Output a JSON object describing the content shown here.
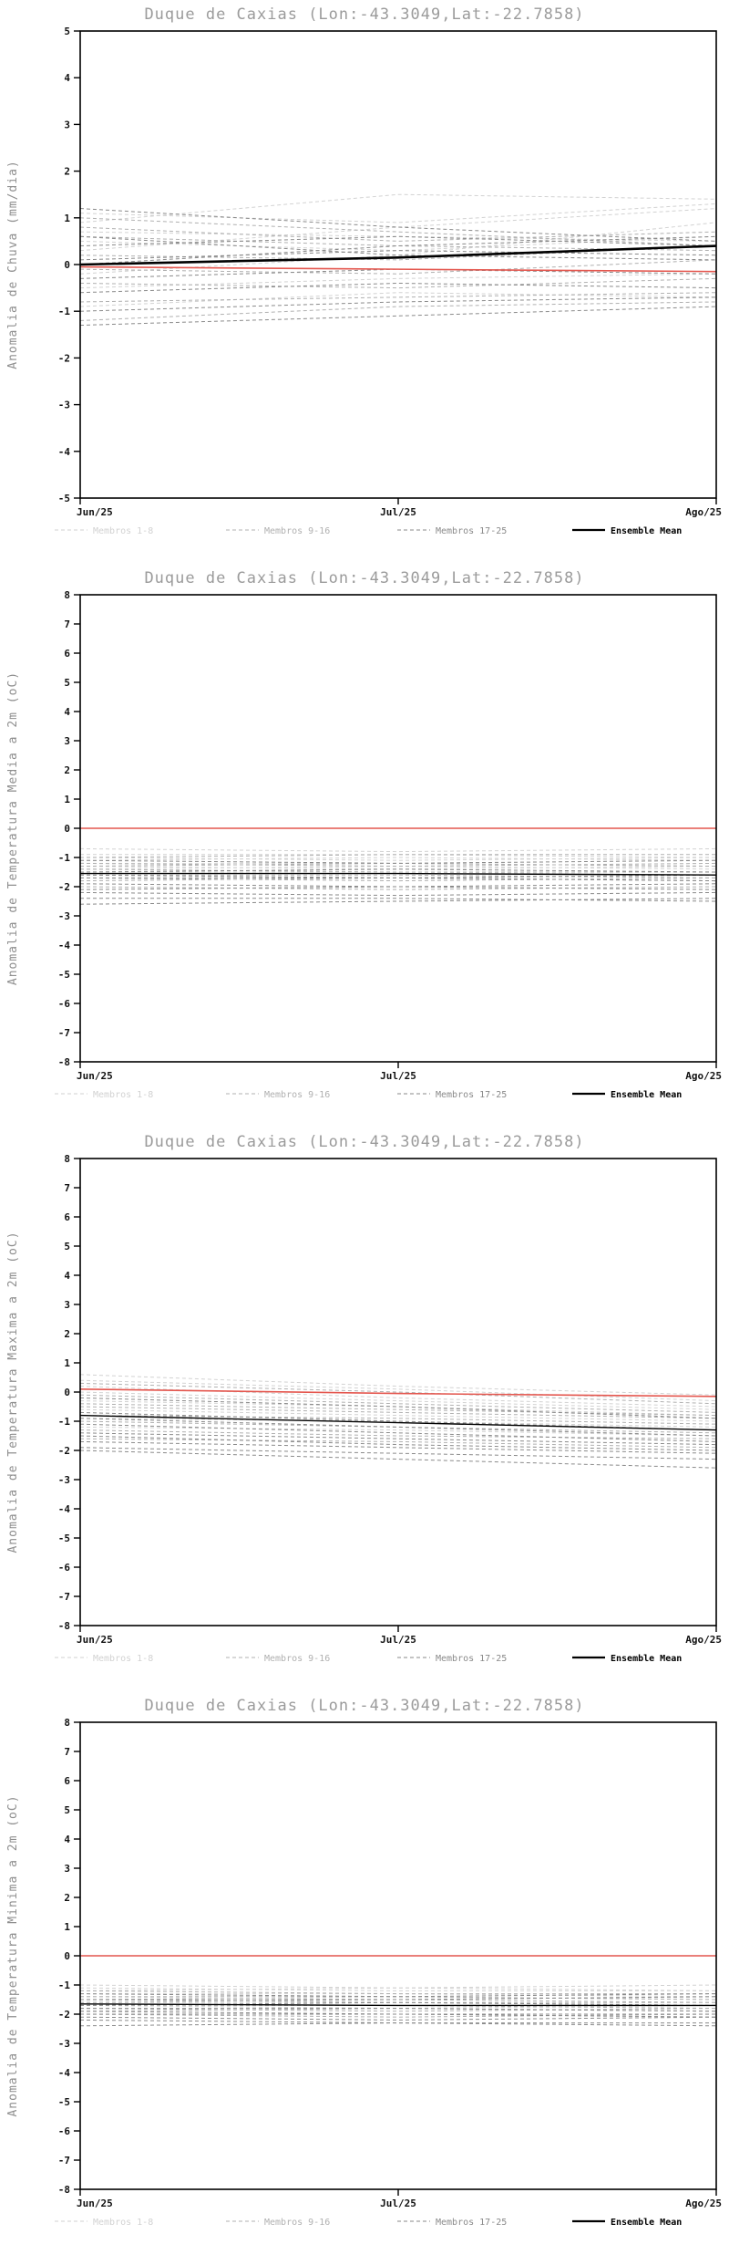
{
  "page": {
    "background": "#ffffff",
    "station_title": "Duque de Caxias (Lon:-43.3049,Lat:-22.7858)"
  },
  "chart_data": [
    {
      "type": "line",
      "title": "Duque de Caxias (Lon:-43.3049,Lat:-22.7858)",
      "ylabel": "Anomalia de Chuva (mm/dia)",
      "x_categories": [
        "Jun/25",
        "Jul/25",
        "Ago/25"
      ],
      "ylim": [
        -5,
        5
      ],
      "ytick_step": 1,
      "grid": false,
      "legend_position": "bottom",
      "mean_line_width": 2.6,
      "colors": {
        "group1": "#d2d2d2",
        "group2": "#b0b0b0",
        "group3": "#8a8a8a",
        "mean": "#000000",
        "reference": "#e4574f"
      },
      "groups": [
        {
          "name": "Membros 1-8",
          "color_key": "group1",
          "members": [
            [
              1.1,
              0.9,
              1.3
            ],
            [
              0.9,
              1.5,
              1.4
            ],
            [
              0.7,
              0.6,
              0.5
            ],
            [
              0.5,
              0.3,
              0.6
            ],
            [
              -0.2,
              0.2,
              0.9
            ],
            [
              -0.5,
              -0.3,
              -0.2
            ],
            [
              -0.9,
              -0.6,
              -0.7
            ],
            [
              0.3,
              0.8,
              1.2
            ]
          ]
        },
        {
          "name": "Membros 9-16",
          "color_key": "group2",
          "members": [
            [
              1.0,
              0.7,
              0.4
            ],
            [
              0.6,
              0.4,
              0.3
            ],
            [
              0.2,
              0.1,
              0.4
            ],
            [
              -0.1,
              -0.2,
              0.1
            ],
            [
              -0.4,
              -0.5,
              -0.3
            ],
            [
              -0.8,
              -0.7,
              -0.6
            ],
            [
              -1.2,
              -0.9,
              -0.8
            ],
            [
              0.8,
              0.5,
              0.7
            ]
          ]
        },
        {
          "name": "Membros 17-25",
          "color_key": "group3",
          "members": [
            [
              1.2,
              0.8,
              0.5
            ],
            [
              0.4,
              0.6,
              0.4
            ],
            [
              0.1,
              0.3,
              0.2
            ],
            [
              -0.3,
              -0.1,
              -0.2
            ],
            [
              -0.6,
              -0.4,
              -0.5
            ],
            [
              -1.0,
              -0.8,
              -0.7
            ],
            [
              -1.3,
              -1.1,
              -0.9
            ],
            [
              0.0,
              0.4,
              0.6
            ],
            [
              0.6,
              0.2,
              0.1
            ]
          ]
        }
      ],
      "ensemble_mean": [
        0.0,
        0.15,
        0.4
      ],
      "reference_line": [
        -0.05,
        -0.1,
        -0.15
      ],
      "legend": [
        {
          "label": "Membros 1-8",
          "color": "#d2d2d2",
          "style": "dashed"
        },
        {
          "label": "Membros 9-16",
          "color": "#b0b0b0",
          "style": "dashed"
        },
        {
          "label": "Membros 17-25",
          "color": "#8a8a8a",
          "style": "dashed"
        },
        {
          "label": "Ensemble Mean",
          "color": "#000000",
          "style": "solid"
        }
      ]
    },
    {
      "type": "line",
      "title": "Duque de Caxias (Lon:-43.3049,Lat:-22.7858)",
      "ylabel": "Anomalia de Temperatura Media a 2m (oC)",
      "x_categories": [
        "Jun/25",
        "Jul/25",
        "Ago/25"
      ],
      "ylim": [
        -8,
        8
      ],
      "ytick_step": 1,
      "grid": false,
      "legend_position": "bottom",
      "mean_line_width": 1.4,
      "colors": {
        "group1": "#d2d2d2",
        "group2": "#b0b0b0",
        "group3": "#8a8a8a",
        "mean": "#000000",
        "reference": "#e4574f"
      },
      "groups": [
        {
          "name": "Membros 1-8",
          "color_key": "group1",
          "members": [
            [
              -0.7,
              -0.8,
              -0.7
            ],
            [
              -0.9,
              -0.9,
              -1.0
            ],
            [
              -1.0,
              -1.1,
              -1.0
            ],
            [
              -1.1,
              -1.0,
              -1.1
            ],
            [
              -1.2,
              -1.2,
              -1.3
            ],
            [
              -1.3,
              -1.4,
              -1.3
            ],
            [
              -1.4,
              -1.3,
              -1.4
            ],
            [
              -1.5,
              -1.5,
              -1.6
            ]
          ]
        },
        {
          "name": "Membros 9-16",
          "color_key": "group2",
          "members": [
            [
              -1.0,
              -0.9,
              -0.9
            ],
            [
              -1.2,
              -1.3,
              -1.2
            ],
            [
              -1.4,
              -1.5,
              -1.5
            ],
            [
              -1.6,
              -1.6,
              -1.7
            ],
            [
              -1.7,
              -1.8,
              -1.7
            ],
            [
              -1.8,
              -1.7,
              -1.8
            ],
            [
              -2.0,
              -2.1,
              -2.0
            ],
            [
              -1.3,
              -1.2,
              -1.3
            ]
          ]
        },
        {
          "name": "Membros 17-25",
          "color_key": "group3",
          "members": [
            [
              -1.1,
              -1.2,
              -1.1
            ],
            [
              -1.5,
              -1.4,
              -1.5
            ],
            [
              -1.7,
              -1.7,
              -1.8
            ],
            [
              -1.9,
              -2.0,
              -1.9
            ],
            [
              -2.1,
              -2.0,
              -2.1
            ],
            [
              -2.2,
              -2.3,
              -2.2
            ],
            [
              -2.4,
              -2.4,
              -2.5
            ],
            [
              -2.6,
              -2.5,
              -2.4
            ],
            [
              -1.6,
              -1.7,
              -1.6
            ]
          ]
        }
      ],
      "ensemble_mean": [
        -1.55,
        -1.55,
        -1.6
      ],
      "reference_line": [
        0.0,
        0.0,
        0.0
      ],
      "legend": [
        {
          "label": "Membros 1-8",
          "color": "#d2d2d2",
          "style": "dashed"
        },
        {
          "label": "Membros 9-16",
          "color": "#b0b0b0",
          "style": "dashed"
        },
        {
          "label": "Membros 17-25",
          "color": "#8a8a8a",
          "style": "dashed"
        },
        {
          "label": "Ensemble Mean",
          "color": "#000000",
          "style": "solid"
        }
      ]
    },
    {
      "type": "line",
      "title": "Duque de Caxias (Lon:-43.3049,Lat:-22.7858)",
      "ylabel": "Anomalia de Temperatura Maxima a 2m (oC)",
      "x_categories": [
        "Jun/25",
        "Jul/25",
        "Ago/25"
      ],
      "ylim": [
        -8,
        8
      ],
      "ytick_step": 1,
      "grid": false,
      "legend_position": "bottom",
      "mean_line_width": 1.4,
      "colors": {
        "group1": "#d2d2d2",
        "group2": "#b0b0b0",
        "group3": "#8a8a8a",
        "mean": "#000000",
        "reference": "#e4574f"
      },
      "groups": [
        {
          "name": "Membros 1-8",
          "color_key": "group1",
          "members": [
            [
              0.6,
              0.2,
              -0.1
            ],
            [
              0.4,
              0.1,
              -0.3
            ],
            [
              0.2,
              -0.2,
              -0.5
            ],
            [
              0.0,
              -0.3,
              -0.6
            ],
            [
              -0.3,
              -0.5,
              -0.8
            ],
            [
              -0.6,
              -0.8,
              -1.0
            ],
            [
              -0.9,
              -1.0,
              -1.2
            ],
            [
              -1.2,
              -1.3,
              -1.5
            ]
          ]
        },
        {
          "name": "Membros 9-16",
          "color_key": "group2",
          "members": [
            [
              0.3,
              0.0,
              -0.4
            ],
            [
              -0.1,
              -0.4,
              -0.7
            ],
            [
              -0.5,
              -0.7,
              -0.9
            ],
            [
              -0.8,
              -0.9,
              -1.1
            ],
            [
              -1.0,
              -1.2,
              -1.4
            ],
            [
              -1.3,
              -1.5,
              -1.6
            ],
            [
              -1.6,
              -1.7,
              -1.9
            ],
            [
              -0.4,
              -0.6,
              -0.8
            ]
          ]
        },
        {
          "name": "Membros 17-25",
          "color_key": "group3",
          "members": [
            [
              -0.2,
              -0.5,
              -0.9
            ],
            [
              -0.7,
              -1.0,
              -1.3
            ],
            [
              -1.1,
              -1.4,
              -1.7
            ],
            [
              -1.4,
              -1.6,
              -1.8
            ],
            [
              -1.7,
              -1.9,
              -2.1
            ],
            [
              -1.9,
              -2.1,
              -2.3
            ],
            [
              -2.0,
              -2.3,
              -2.6
            ],
            [
              -1.5,
              -1.8,
              -2.0
            ],
            [
              -0.9,
              -1.2,
              -1.5
            ]
          ]
        }
      ],
      "ensemble_mean": [
        -0.8,
        -1.05,
        -1.3
      ],
      "reference_line": [
        0.1,
        -0.05,
        -0.15
      ],
      "legend": [
        {
          "label": "Membros 1-8",
          "color": "#d2d2d2",
          "style": "dashed"
        },
        {
          "label": "Membros 9-16",
          "color": "#b0b0b0",
          "style": "dashed"
        },
        {
          "label": "Membros 17-25",
          "color": "#8a8a8a",
          "style": "dashed"
        },
        {
          "label": "Ensemble Mean",
          "color": "#000000",
          "style": "solid"
        }
      ]
    },
    {
      "type": "line",
      "title": "Duque de Caxias (Lon:-43.3049,Lat:-22.7858)",
      "ylabel": "Anomalia de Temperatura Minima a 2m (oC)",
      "x_categories": [
        "Jun/25",
        "Jul/25",
        "Ago/25"
      ],
      "ylim": [
        -8,
        8
      ],
      "ytick_step": 1,
      "grid": false,
      "legend_position": "bottom",
      "mean_line_width": 1.4,
      "colors": {
        "group1": "#d2d2d2",
        "group2": "#b0b0b0",
        "group3": "#8a8a8a",
        "mean": "#000000",
        "reference": "#e4574f"
      },
      "groups": [
        {
          "name": "Membros 1-8",
          "color_key": "group1",
          "members": [
            [
              -1.0,
              -1.1,
              -1.0
            ],
            [
              -1.1,
              -1.2,
              -1.2
            ],
            [
              -1.2,
              -1.1,
              -1.2
            ],
            [
              -1.3,
              -1.3,
              -1.4
            ],
            [
              -1.4,
              -1.5,
              -1.4
            ],
            [
              -1.5,
              -1.4,
              -1.5
            ],
            [
              -1.6,
              -1.6,
              -1.7
            ],
            [
              -1.7,
              -1.8,
              -1.7
            ]
          ]
        },
        {
          "name": "Membros 9-16",
          "color_key": "group2",
          "members": [
            [
              -1.2,
              -1.3,
              -1.3
            ],
            [
              -1.4,
              -1.4,
              -1.5
            ],
            [
              -1.5,
              -1.6,
              -1.6
            ],
            [
              -1.7,
              -1.7,
              -1.8
            ],
            [
              -1.8,
              -1.9,
              -1.8
            ],
            [
              -1.9,
              -1.8,
              -1.9
            ],
            [
              -2.0,
              -2.1,
              -2.0
            ],
            [
              -1.6,
              -1.5,
              -1.6
            ]
          ]
        },
        {
          "name": "Membros 17-25",
          "color_key": "group3",
          "members": [
            [
              -1.3,
              -1.4,
              -1.3
            ],
            [
              -1.5,
              -1.5,
              -1.4
            ],
            [
              -1.8,
              -1.8,
              -1.9
            ],
            [
              -1.9,
              -2.0,
              -2.0
            ],
            [
              -2.0,
              -2.0,
              -2.1
            ],
            [
              -2.1,
              -2.2,
              -2.1
            ],
            [
              -2.2,
              -2.3,
              -2.3
            ],
            [
              -2.4,
              -2.3,
              -2.4
            ],
            [
              -1.7,
              -1.6,
              -1.7
            ]
          ]
        }
      ],
      "ensemble_mean": [
        -1.65,
        -1.7,
        -1.7
      ],
      "reference_line": [
        0.0,
        0.0,
        0.0
      ],
      "legend": [
        {
          "label": "Membros 1-8",
          "color": "#d2d2d2",
          "style": "dashed"
        },
        {
          "label": "Membros 9-16",
          "color": "#b0b0b0",
          "style": "dashed"
        },
        {
          "label": "Membros 17-25",
          "color": "#8a8a8a",
          "style": "dashed"
        },
        {
          "label": "Ensemble Mean",
          "color": "#000000",
          "style": "solid"
        }
      ]
    }
  ]
}
